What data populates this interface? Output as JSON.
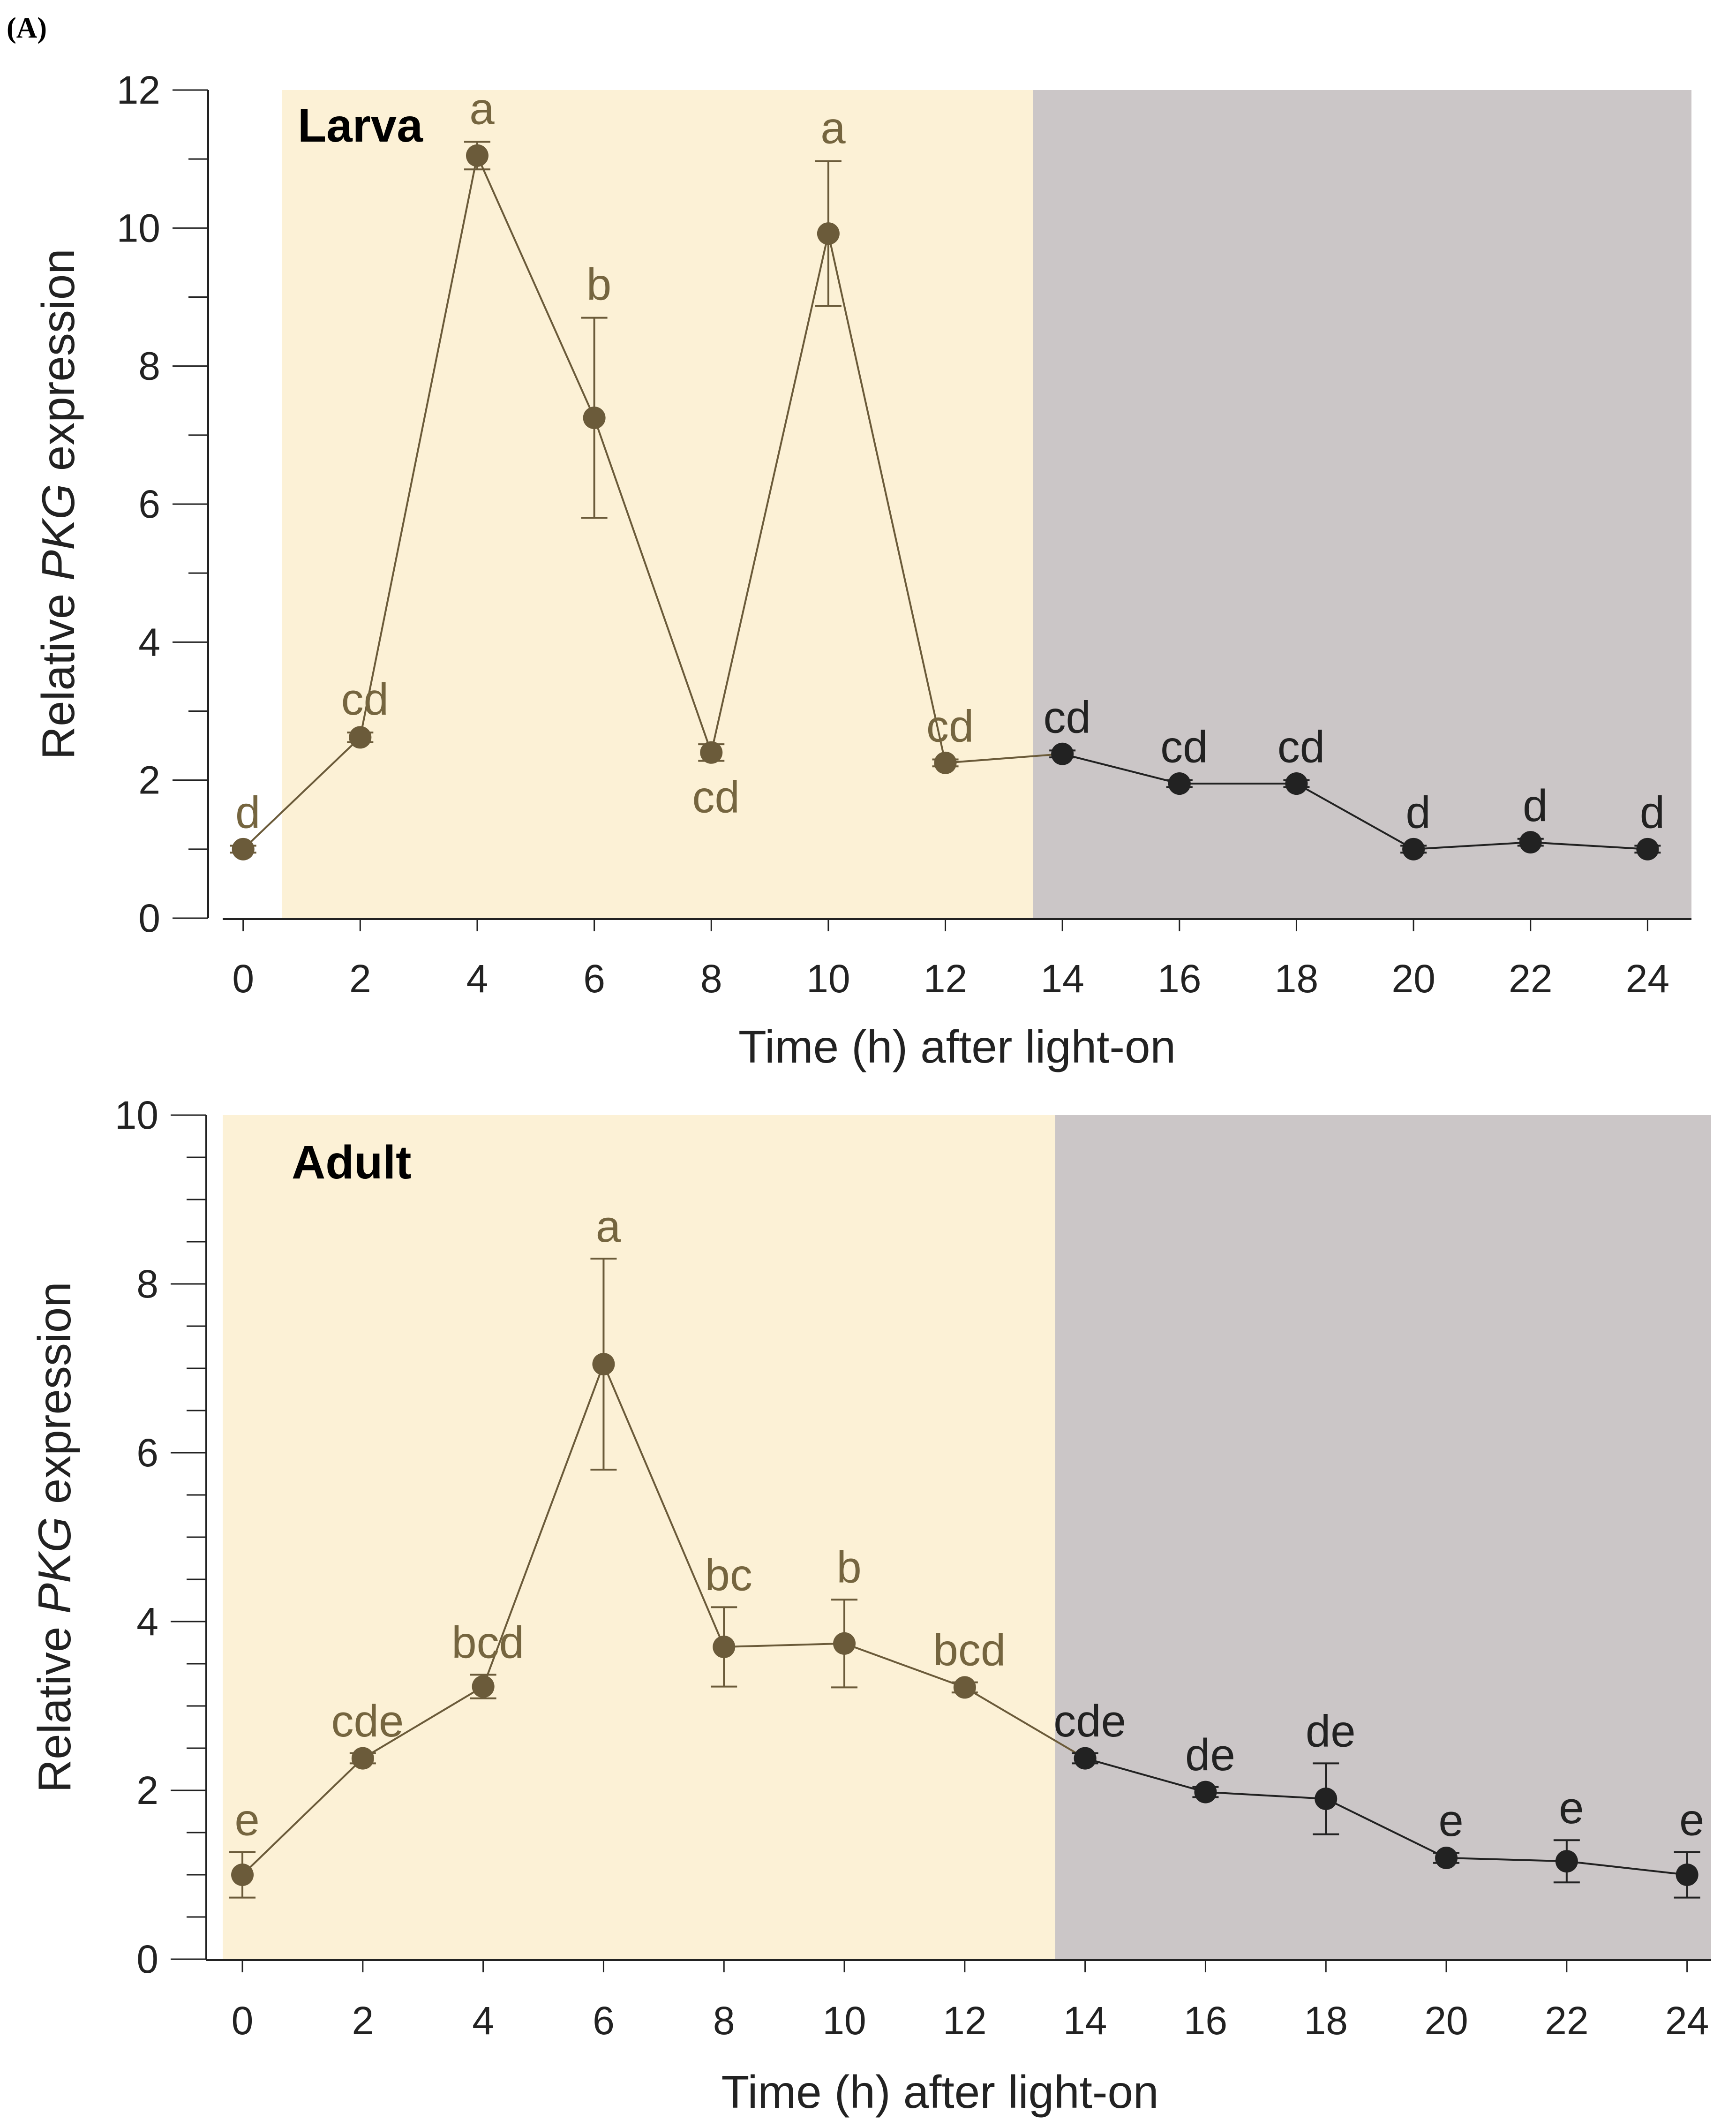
{
  "figure_label": "(A)",
  "colors": {
    "light_phase": "#fcf1d6",
    "dark_phase": "#cbc6c7",
    "light_series": "#6b5b3a",
    "light_label": "#75653f",
    "dark_series": "#222222",
    "dark_label": "#222222",
    "axis": "#222222"
  },
  "chart_data": [
    {
      "type": "line",
      "title": "Larva",
      "xlabel": "Time (h) after light-on",
      "ylabel_parts": [
        "Relative ",
        "PKG",
        " expression"
      ],
      "x": [
        0,
        2,
        4,
        6,
        8,
        10,
        12,
        14,
        16,
        18,
        20,
        22,
        24
      ],
      "values": [
        1.0,
        2.62,
        11.05,
        7.25,
        2.4,
        9.92,
        2.25,
        2.38,
        1.95,
        1.95,
        1.0,
        1.1,
        1.0
      ],
      "errors": [
        0.05,
        0.07,
        0.2,
        1.45,
        0.12,
        1.05,
        0.05,
        0.05,
        0.05,
        0.05,
        0.05,
        0.05,
        0.05
      ],
      "letters": [
        "d",
        "cd",
        "a",
        "b",
        "cd",
        "a",
        "cd",
        "cd",
        "cd",
        "cd",
        "d",
        "d",
        "d"
      ],
      "letter_below": [
        false,
        false,
        false,
        false,
        true,
        false,
        false,
        false,
        false,
        false,
        false,
        false,
        false
      ],
      "xlim": [
        -0.35,
        24.75
      ],
      "ylim": [
        0,
        12
      ],
      "x_ticks": [
        0,
        2,
        4,
        6,
        8,
        10,
        12,
        14,
        16,
        18,
        20,
        22,
        24
      ],
      "y_ticks": [
        0,
        2,
        4,
        6,
        8,
        10,
        12
      ],
      "y_minor_step": 1,
      "light_phase_end": 13.5,
      "grid": false,
      "legend": "none"
    },
    {
      "type": "line",
      "title": "Adult",
      "xlabel": "Time (h) after light-on",
      "ylabel_parts": [
        "Relative ",
        "PKG",
        " expression"
      ],
      "x": [
        0,
        2,
        4,
        6,
        8,
        10,
        12,
        14,
        16,
        18,
        20,
        22,
        24
      ],
      "values": [
        1.0,
        2.38,
        3.23,
        7.05,
        3.7,
        3.74,
        3.22,
        2.38,
        1.98,
        1.9,
        1.2,
        1.16,
        1.0
      ],
      "errors": [
        0.27,
        0.06,
        0.14,
        1.25,
        0.47,
        0.52,
        0.06,
        0.06,
        0.06,
        0.42,
        0.06,
        0.25,
        0.27
      ],
      "letters": [
        "e",
        "cde",
        "bcd",
        "a",
        "bc",
        "b",
        "bcd",
        "cde",
        "de",
        "de",
        "e",
        "e",
        "e"
      ],
      "letter_below": [
        false,
        false,
        false,
        false,
        false,
        false,
        false,
        false,
        false,
        false,
        false,
        false,
        false
      ],
      "xlim": [
        -0.6,
        24.4
      ],
      "ylim": [
        0,
        10
      ],
      "x_ticks": [
        0,
        2,
        4,
        6,
        8,
        10,
        12,
        14,
        16,
        18,
        20,
        22,
        24
      ],
      "y_ticks": [
        0,
        2,
        4,
        6,
        8,
        10
      ],
      "y_minor_step": 0.5,
      "light_phase_end": 13.5,
      "grid": false,
      "legend": "none"
    }
  ]
}
